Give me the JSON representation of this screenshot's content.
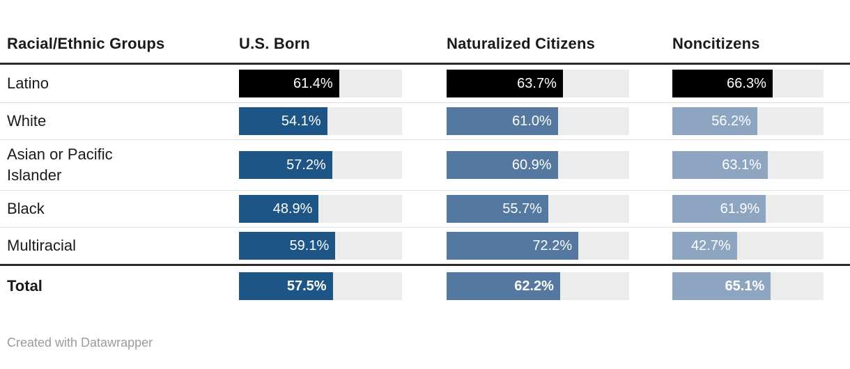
{
  "table": {
    "columns": [
      {
        "label": "Racial/Ethnic Groups"
      },
      {
        "label": "U.S. Born"
      },
      {
        "label": "Naturalized Citizens"
      },
      {
        "label": "Noncitizens"
      }
    ],
    "rows": [
      {
        "label": "Latino",
        "highlight": true,
        "bold": false,
        "cells": [
          {
            "value": 61.4,
            "label": "61.4%"
          },
          {
            "value": 63.7,
            "label": "63.7%"
          },
          {
            "value": 66.3,
            "label": "66.3%"
          }
        ]
      },
      {
        "label": "White",
        "highlight": false,
        "bold": false,
        "cells": [
          {
            "value": 54.1,
            "label": "54.1%"
          },
          {
            "value": 61.0,
            "label": "61.0%"
          },
          {
            "value": 56.2,
            "label": "56.2%"
          }
        ]
      },
      {
        "label": "Asian or Pacific Islander",
        "highlight": false,
        "bold": false,
        "cells": [
          {
            "value": 57.2,
            "label": "57.2%"
          },
          {
            "value": 60.9,
            "label": "60.9%"
          },
          {
            "value": 63.1,
            "label": "63.1%"
          }
        ]
      },
      {
        "label": "Black",
        "highlight": false,
        "bold": false,
        "cells": [
          {
            "value": 48.9,
            "label": "48.9%"
          },
          {
            "value": 55.7,
            "label": "55.7%"
          },
          {
            "value": 61.9,
            "label": "61.9%"
          }
        ]
      },
      {
        "label": "Multiracial",
        "highlight": false,
        "bold": false,
        "cells": [
          {
            "value": 59.1,
            "label": "59.1%"
          },
          {
            "value": 72.2,
            "label": "72.2%"
          },
          {
            "value": 42.7,
            "label": "42.7%"
          }
        ]
      },
      {
        "label": "Total",
        "highlight": false,
        "bold": true,
        "cells": [
          {
            "value": 57.5,
            "label": "57.5%"
          },
          {
            "value": 62.2,
            "label": "62.2%"
          },
          {
            "value": 65.1,
            "label": "65.1%"
          }
        ]
      }
    ]
  },
  "colors": {
    "bar_us_born": "#1d5587",
    "bar_naturalized": "#54789f",
    "bar_noncitizens": "#8da5c1",
    "bar_highlight": "#000000",
    "track": "#ececec",
    "rule_heavy": "#2b2b2b",
    "rule_light": "#e0e0e0",
    "text": "#1a1a1a",
    "footer_text": "#9b9b9b"
  },
  "footer": {
    "credit": "Created with Datawrapper"
  },
  "chart_data": {
    "type": "bar",
    "title": "",
    "categories": [
      "Latino",
      "White",
      "Asian or Pacific Islander",
      "Black",
      "Multiracial",
      "Total"
    ],
    "series": [
      {
        "name": "U.S. Born",
        "values": [
          61.4,
          54.1,
          57.2,
          48.9,
          59.1,
          57.5
        ]
      },
      {
        "name": "Naturalized Citizens",
        "values": [
          63.7,
          61.0,
          60.9,
          55.7,
          72.2,
          62.2
        ]
      },
      {
        "name": "Noncitizens",
        "values": [
          66.3,
          56.2,
          63.1,
          61.9,
          42.7,
          65.1
        ]
      }
    ],
    "value_unit": "%",
    "xlim": [
      0,
      100
    ],
    "grid": false,
    "legend_position": "column-headers",
    "layout_hint": "table of horizontal bars; first data row uses black highlight bars; last row is bold Total with heavy rule above; heavy rule under header"
  }
}
